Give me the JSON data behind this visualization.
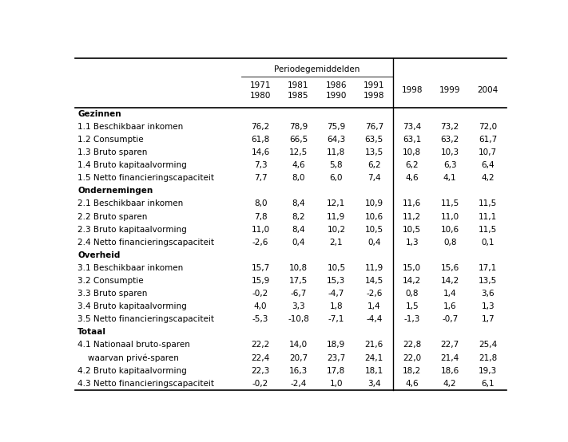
{
  "rows": [
    {
      "label": "Gezinnen",
      "bold": true,
      "indent": 0,
      "values": null
    },
    {
      "label": "1.1 Beschikbaar inkomen",
      "bold": false,
      "indent": 0,
      "values": [
        "76,2",
        "78,9",
        "75,9",
        "76,7",
        "73,4",
        "73,2",
        "72,0"
      ]
    },
    {
      "label": "1.2 Consumptie",
      "bold": false,
      "indent": 0,
      "values": [
        "61,8",
        "66,5",
        "64,3",
        "63,5",
        "63,1",
        "63,2",
        "61,7"
      ]
    },
    {
      "label": "1.3 Bruto sparen",
      "bold": false,
      "indent": 0,
      "values": [
        "14,6",
        "12,5",
        "11,8",
        "13,5",
        "10,8",
        "10,3",
        "10,7"
      ]
    },
    {
      "label": "1.4 Bruto kapitaalvorming",
      "bold": false,
      "indent": 0,
      "values": [
        "7,3",
        "4,6",
        "5,8",
        "6,2",
        "6,2",
        "6,3",
        "6,4"
      ]
    },
    {
      "label": "1.5 Netto financieringscapaciteit",
      "bold": false,
      "indent": 0,
      "values": [
        "7,7",
        "8,0",
        "6,0",
        "7,4",
        "4,6",
        "4,1",
        "4,2"
      ]
    },
    {
      "label": "Ondernemingen",
      "bold": true,
      "indent": 0,
      "values": null
    },
    {
      "label": "2.1 Beschikbaar inkomen",
      "bold": false,
      "indent": 0,
      "values": [
        "8,0",
        "8,4",
        "12,1",
        "10,9",
        "11,6",
        "11,5",
        "11,5"
      ]
    },
    {
      "label": "2.2 Bruto sparen",
      "bold": false,
      "indent": 0,
      "values": [
        "7,8",
        "8,2",
        "11,9",
        "10,6",
        "11,2",
        "11,0",
        "11,1"
      ]
    },
    {
      "label": "2.3 Bruto kapitaalvorming",
      "bold": false,
      "indent": 0,
      "values": [
        "11,0",
        "8,4",
        "10,2",
        "10,5",
        "10,5",
        "10,6",
        "11,5"
      ]
    },
    {
      "label": "2.4 Netto financieringscapaciteit",
      "bold": false,
      "indent": 0,
      "values": [
        "-2,6",
        "0,4",
        "2,1",
        "0,4",
        "1,3",
        "0,8",
        "0,1"
      ]
    },
    {
      "label": "Overheid",
      "bold": true,
      "indent": 0,
      "values": null
    },
    {
      "label": "3.1 Beschikbaar inkomen",
      "bold": false,
      "indent": 0,
      "values": [
        "15,7",
        "10,8",
        "10,5",
        "11,9",
        "15,0",
        "15,6",
        "17,1"
      ]
    },
    {
      "label": "3.2 Consumptie",
      "bold": false,
      "indent": 0,
      "values": [
        "15,9",
        "17,5",
        "15,3",
        "14,5",
        "14,2",
        "14,2",
        "13,5"
      ]
    },
    {
      "label": "3.3 Bruto sparen",
      "bold": false,
      "indent": 0,
      "values": [
        "-0,2",
        "-6,7",
        "-4,7",
        "-2,6",
        "0,8",
        "1,4",
        "3,6"
      ]
    },
    {
      "label": "3.4 Bruto kapitaalvorming",
      "bold": false,
      "indent": 0,
      "values": [
        "4,0",
        "3,3",
        "1,8",
        "1,4",
        "1,5",
        "1,6",
        "1,3"
      ]
    },
    {
      "label": "3.5 Netto financieringscapaciteit",
      "bold": false,
      "indent": 0,
      "values": [
        "-5,3",
        "-10,8",
        "-7,1",
        "-4,4",
        "-1,3",
        "-0,7",
        "1,7"
      ]
    },
    {
      "label": "Totaal",
      "bold": true,
      "indent": 0,
      "values": null
    },
    {
      "label": "4.1 Nationaal bruto-sparen",
      "bold": false,
      "indent": 0,
      "values": [
        "22,2",
        "14,0",
        "18,9",
        "21,6",
        "22,8",
        "22,7",
        "25,4"
      ]
    },
    {
      "label": "    waarvan privé-sparen",
      "bold": false,
      "indent": 1,
      "values": [
        "22,4",
        "20,7",
        "23,7",
        "24,1",
        "22,0",
        "21,4",
        "21,8"
      ]
    },
    {
      "label": "4.2 Bruto kapitaalvorming",
      "bold": false,
      "indent": 0,
      "values": [
        "22,3",
        "16,3",
        "17,8",
        "18,1",
        "18,2",
        "18,6",
        "19,3"
      ]
    },
    {
      "label": "4.3 Netto financieringscapaciteit",
      "bold": false,
      "indent": 0,
      "values": [
        "-0,2",
        "-2,4",
        "1,0",
        "3,4",
        "4,6",
        "4,2",
        "6,1"
      ]
    }
  ],
  "col_headers": [
    "1971\n1980",
    "1981\n1985",
    "1986\n1990",
    "1991\n1998",
    "1998",
    "1999",
    "2004"
  ],
  "period_label": "Periodegemiddelden",
  "bg_color": "#ffffff",
  "text_color": "#000000",
  "line_color": "#000000",
  "font_size": 7.5,
  "header_font_size": 7.5,
  "figwidth": 7.11,
  "figheight": 5.54,
  "dpi": 100
}
